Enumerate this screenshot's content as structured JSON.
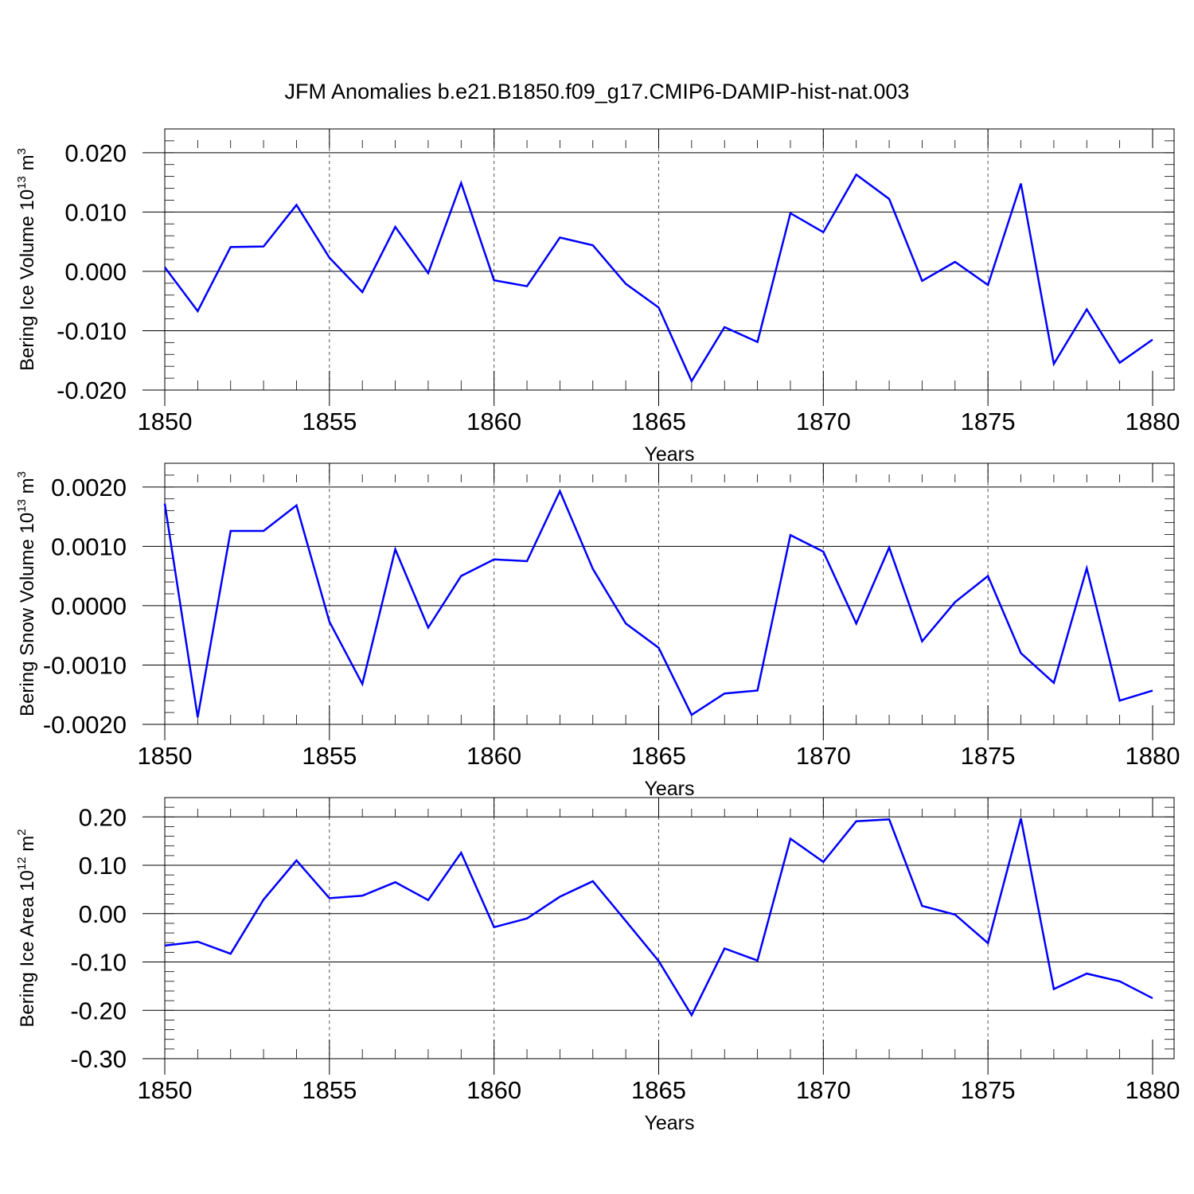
{
  "title": "JFM Anomalies b.e21.B1850.f09_g17.CMIP6-DAMIP-hist-nat.003",
  "line_color": "#0000ff",
  "chart_data": [
    {
      "type": "line",
      "ylabel_main": "Bering Ice Volume 10",
      "ylabel_exp": "13",
      "ylabel_unit": " m",
      "ylabel_unit_exp": "3",
      "xlabel": "Years",
      "xlim": [
        1850,
        1880
      ],
      "ylim": [
        -0.02,
        0.024
      ],
      "yticks": [
        -0.02,
        -0.01,
        0.0,
        0.01,
        0.02
      ],
      "ytick_labels": [
        "-0.020",
        "-0.010",
        "0.000",
        "0.010",
        "0.020"
      ],
      "xticks": [
        1850,
        1855,
        1860,
        1865,
        1870,
        1875,
        1880
      ],
      "xtick_labels": [
        "1850",
        "1855",
        "1860",
        "1865",
        "1870",
        "1875",
        "1880"
      ],
      "x": [
        1850,
        1851,
        1852,
        1853,
        1854,
        1855,
        1856,
        1857,
        1858,
        1859,
        1860,
        1861,
        1862,
        1863,
        1864,
        1865,
        1866,
        1867,
        1868,
        1869,
        1870,
        1871,
        1872,
        1873,
        1874,
        1875,
        1876,
        1877,
        1878,
        1879,
        1880
      ],
      "series": [
        {
          "name": "Bering Ice Volume",
          "values": [
            0.0007,
            -0.0067,
            0.0041,
            0.0042,
            0.0112,
            0.0023,
            -0.0035,
            0.0075,
            -0.0003,
            0.0149,
            -0.0015,
            -0.0025,
            0.0057,
            0.0044,
            -0.0021,
            -0.0061,
            -0.0185,
            -0.0094,
            -0.0119,
            0.0098,
            0.0066,
            0.0163,
            0.0122,
            -0.0016,
            0.0016,
            -0.0023,
            0.0148,
            -0.0156,
            -0.0064,
            -0.0154,
            -0.0115
          ]
        }
      ]
    },
    {
      "type": "line",
      "ylabel_main": "Bering Snow Volume 10",
      "ylabel_exp": "13",
      "ylabel_unit": " m",
      "ylabel_unit_exp": "3",
      "xlabel": "Years",
      "xlim": [
        1850,
        1880
      ],
      "ylim": [
        -0.002,
        0.0024
      ],
      "yticks": [
        -0.002,
        -0.001,
        0.0,
        0.001,
        0.002
      ],
      "ytick_labels": [
        "-0.0020",
        "-0.0010",
        "0.0000",
        "0.0010",
        "0.0020"
      ],
      "xticks": [
        1850,
        1855,
        1860,
        1865,
        1870,
        1875,
        1880
      ],
      "xtick_labels": [
        "1850",
        "1855",
        "1860",
        "1865",
        "1870",
        "1875",
        "1880"
      ],
      "x": [
        1850,
        1851,
        1852,
        1853,
        1854,
        1855,
        1856,
        1857,
        1858,
        1859,
        1860,
        1861,
        1862,
        1863,
        1864,
        1865,
        1866,
        1867,
        1868,
        1869,
        1870,
        1871,
        1872,
        1873,
        1874,
        1875,
        1876,
        1877,
        1878,
        1879,
        1880
      ],
      "series": [
        {
          "name": "Bering Snow Volume",
          "values": [
            0.00172,
            -0.00188,
            0.00126,
            0.00126,
            0.00169,
            -0.00027,
            -0.00132,
            0.00095,
            -0.00037,
            0.0005,
            0.00078,
            0.00075,
            0.00193,
            0.00062,
            -0.0003,
            -0.00071,
            -0.00184,
            -0.00148,
            -0.00143,
            0.00119,
            0.00091,
            -0.0003,
            0.00098,
            -0.0006,
            6e-05,
            0.0005,
            -0.0008,
            -0.0013,
            0.00063,
            -0.0016,
            -0.00143
          ]
        }
      ]
    },
    {
      "type": "line",
      "ylabel_main": "Bering Ice Area 10",
      "ylabel_exp": "12",
      "ylabel_unit": " m",
      "ylabel_unit_exp": "2",
      "xlabel": "Years",
      "xlim": [
        1850,
        1880
      ],
      "ylim": [
        -0.3,
        0.24
      ],
      "yticks": [
        -0.3,
        -0.2,
        -0.1,
        0.0,
        0.1,
        0.2
      ],
      "ytick_labels": [
        "-0.30",
        "-0.20",
        "-0.10",
        "0.00",
        "0.10",
        "0.20"
      ],
      "xticks": [
        1850,
        1855,
        1860,
        1865,
        1870,
        1875,
        1880
      ],
      "xtick_labels": [
        "1850",
        "1855",
        "1860",
        "1865",
        "1870",
        "1875",
        "1880"
      ],
      "x": [
        1850,
        1851,
        1852,
        1853,
        1854,
        1855,
        1856,
        1857,
        1858,
        1859,
        1860,
        1861,
        1862,
        1863,
        1864,
        1865,
        1866,
        1867,
        1868,
        1869,
        1870,
        1871,
        1872,
        1873,
        1874,
        1875,
        1876,
        1877,
        1878,
        1879,
        1880
      ],
      "series": [
        {
          "name": "Bering Ice Area",
          "values": [
            -0.066,
            -0.058,
            -0.083,
            0.029,
            0.11,
            0.032,
            0.037,
            0.065,
            0.028,
            0.126,
            -0.028,
            -0.01,
            0.035,
            0.067,
            -0.015,
            -0.098,
            -0.21,
            -0.072,
            -0.097,
            0.155,
            0.107,
            0.191,
            0.195,
            0.016,
            -0.002,
            -0.061,
            0.197,
            -0.156,
            -0.124,
            -0.14,
            -0.175
          ]
        }
      ]
    }
  ]
}
